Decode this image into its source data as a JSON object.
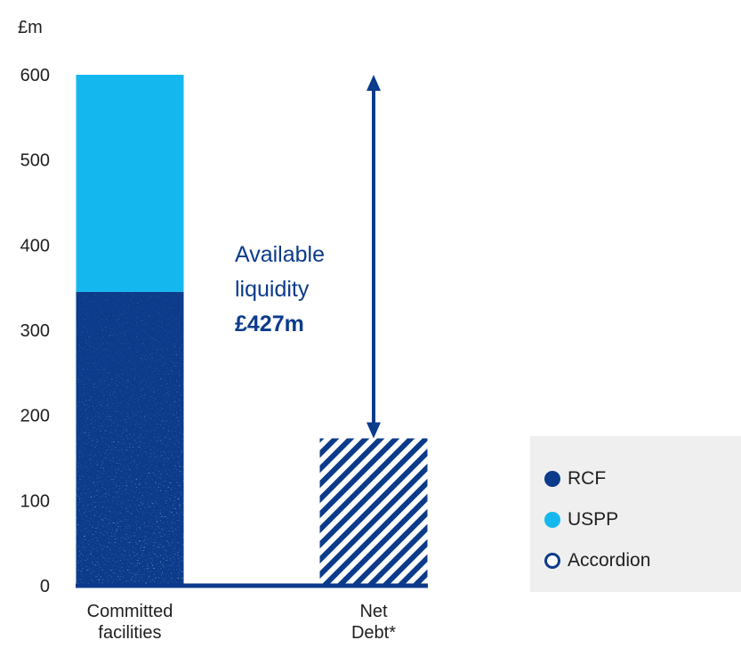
{
  "colors": {
    "rcf": "#0b3b8a",
    "uspp": "#14b8ee",
    "accordion_fill": "#ffffff",
    "axis": "#0b3b8a",
    "legend_bg": "#efefef"
  },
  "chart_data": {
    "type": "bar",
    "stacked": true,
    "unit_label": "£m",
    "categories": [
      "Committed\nfacilities",
      "Net\nDebt*"
    ],
    "ylim": [
      0,
      600
    ],
    "yticks": [
      0,
      100,
      200,
      300,
      400,
      500,
      600
    ],
    "series": [
      {
        "name": "RCF",
        "values": [
          345,
          0
        ],
        "style": "speckle"
      },
      {
        "name": "USPP",
        "values": [
          255,
          0
        ],
        "style": "solid"
      },
      {
        "name": "",
        "values": [
          0,
          173
        ],
        "style": "hatched"
      }
    ],
    "annotation": {
      "lines": [
        "Available",
        "liquidity",
        "£427m"
      ],
      "from_value": 173,
      "to_value": 600
    },
    "legend": [
      {
        "name": "RCF",
        "marker": "filled-circle",
        "color": "#0b3b8a"
      },
      {
        "name": "USPP",
        "marker": "filled-circle",
        "color": "#14b8ee"
      },
      {
        "name": "Accordion",
        "marker": "open-circle",
        "color": "#0b3b8a"
      }
    ],
    "grid": false
  }
}
